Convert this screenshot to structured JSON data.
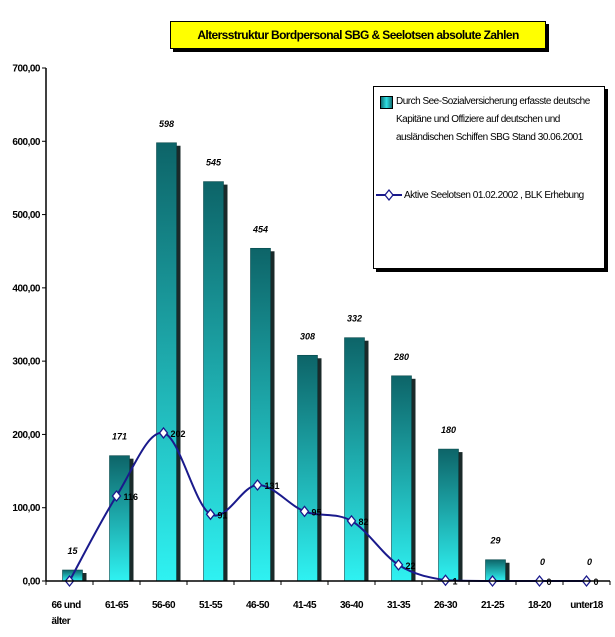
{
  "title": "Altersstruktur Bordpersonal SBG & Seelotsen absolute Zahlen",
  "chart_data": {
    "type": "bar",
    "title": "Altersstruktur Bordpersonal SBG & Seelotsen absolute Zahlen",
    "categories": [
      "66 und älter",
      "61-65",
      "56-60",
      "51-55",
      "46-50",
      "41-45",
      "36-40",
      "31-35",
      "26-30",
      "21-25",
      "18-20",
      "unter18"
    ],
    "series": [
      {
        "name": "Durch See-Sozialversicherung erfasste deutsche Kapitäne und Offiziere auf deutschen und ausländischen Schiffen SBG Stand 30.06.2001",
        "type": "bar",
        "values": [
          15,
          171,
          598,
          545,
          454,
          308,
          332,
          280,
          180,
          29,
          0,
          0
        ],
        "labels": [
          "15",
          "171",
          "598",
          "545",
          "454",
          "308",
          "332",
          "280",
          "180",
          "29",
          "0",
          "0"
        ]
      },
      {
        "name": "Aktive Seelotsen 01.02.2002 , BLK Erhebung",
        "type": "line",
        "values": [
          0,
          116,
          202,
          91,
          131,
          95,
          82,
          22,
          1,
          0,
          0,
          0
        ],
        "labels": [
          "",
          "116",
          "202",
          "91",
          "131",
          "95",
          "82",
          "22",
          "1",
          "",
          "0",
          "0"
        ]
      }
    ],
    "yticks": [
      "0,00",
      "100,00",
      "200,00",
      "300,00",
      "400,00",
      "500,00",
      "600,00",
      "700,00"
    ],
    "ylim": [
      0,
      700
    ],
    "grid": false,
    "legend_position": "top-right",
    "colors": {
      "bar_dark": "#0f6f73",
      "bar_light": "#2fe0e4",
      "line": "#1a1a8c",
      "title_bg": "#ffff00"
    }
  }
}
